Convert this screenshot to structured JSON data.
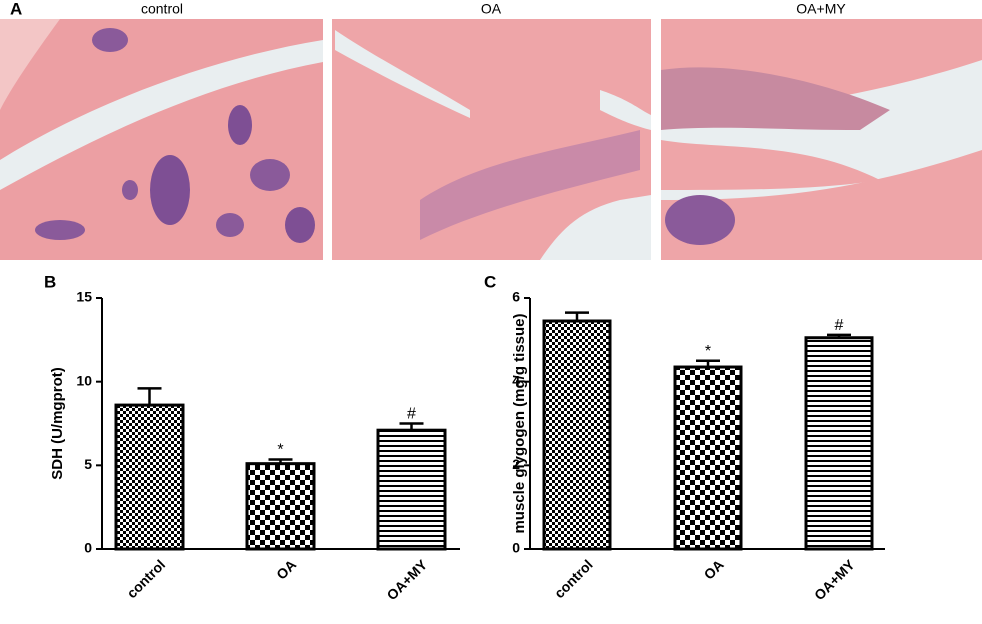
{
  "panel_labels": [
    "A",
    "B",
    "C"
  ],
  "images": [
    {
      "caption": "control"
    },
    {
      "caption": "OA"
    },
    {
      "caption": "OA+MY"
    }
  ],
  "chart_data": [
    {
      "type": "bar",
      "ylabel": "SDH (U/mgprot)",
      "categories": [
        "control",
        "OA",
        "OA+MY"
      ],
      "values": [
        8.6,
        5.1,
        7.1
      ],
      "errors": [
        1.0,
        0.25,
        0.4
      ],
      "annotations": [
        {
          "category": "OA",
          "text": "*"
        },
        {
          "category": "OA+MY",
          "text": "#"
        }
      ],
      "ylim": [
        0,
        15
      ],
      "yticks": [
        0,
        5,
        10,
        15
      ],
      "color": "#000000"
    },
    {
      "type": "bar",
      "ylabel": "muscle glygogen (mg/g tissue)",
      "categories": [
        "control",
        "OA",
        "OA+MY"
      ],
      "values": [
        5.45,
        4.35,
        5.05
      ],
      "errors": [
        0.2,
        0.15,
        0.07
      ],
      "annotations": [
        {
          "category": "OA",
          "text": "*"
        },
        {
          "category": "OA+MY",
          "text": "#"
        }
      ],
      "ylim": [
        0,
        6
      ],
      "yticks": [
        0,
        2,
        4,
        6
      ],
      "color": "#000000"
    }
  ]
}
